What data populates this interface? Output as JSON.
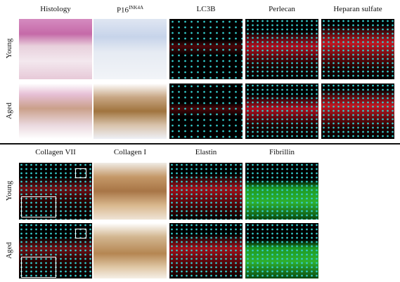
{
  "figure": {
    "blocks": [
      {
        "columns": [
          "Histology",
          {
            "base": "P16",
            "sup": "INK4A"
          },
          "LC3B",
          "Perlecan",
          "Heparan sulfate"
        ],
        "rows": [
          "Young",
          "Aged"
        ]
      },
      {
        "columns": [
          "Collagen VII",
          "Collagen I",
          "Elastin",
          "Fibrillin"
        ],
        "rows": [
          "Young",
          "Aged"
        ]
      }
    ]
  }
}
